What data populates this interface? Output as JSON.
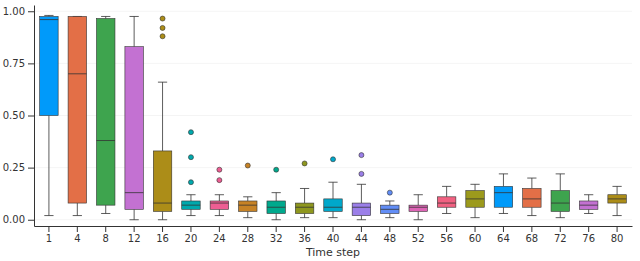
{
  "chart_data": {
    "type": "box",
    "x_label": "Time step",
    "categories": [
      "1",
      "4",
      "8",
      "12",
      "16",
      "20",
      "24",
      "28",
      "32",
      "36",
      "40",
      "44",
      "48",
      "52",
      "56",
      "60",
      "64",
      "68",
      "72",
      "76",
      "80"
    ],
    "boxes": [
      {
        "min": 0.02,
        "q1": 0.5,
        "median": 0.96,
        "q3": 0.975,
        "max": 0.98,
        "outliers": [],
        "color": "#009AFA"
      },
      {
        "min": 0.02,
        "q1": 0.08,
        "median": 0.7,
        "q3": 0.975,
        "max": 0.975,
        "outliers": [],
        "color": "#E36F47"
      },
      {
        "min": 0.03,
        "q1": 0.07,
        "median": 0.38,
        "q3": 0.965,
        "max": 0.975,
        "outliers": [],
        "color": "#3EA44E"
      },
      {
        "min": 0.0,
        "q1": 0.05,
        "median": 0.13,
        "q3": 0.83,
        "max": 0.975,
        "outliers": [],
        "color": "#C371D2"
      },
      {
        "min": 0.0,
        "q1": 0.04,
        "median": 0.08,
        "q3": 0.33,
        "max": 0.66,
        "outliers": [
          0.88,
          0.92,
          0.965
        ],
        "color": "#AC8D18"
      },
      {
        "min": 0.02,
        "q1": 0.05,
        "median": 0.07,
        "q3": 0.09,
        "max": 0.12,
        "outliers": [
          0.18,
          0.3,
          0.42
        ],
        "color": "#00A9AD"
      },
      {
        "min": 0.02,
        "q1": 0.05,
        "median": 0.08,
        "q3": 0.09,
        "max": 0.12,
        "outliers": [
          0.19,
          0.24
        ],
        "color": "#ED5E93"
      },
      {
        "min": 0.01,
        "q1": 0.04,
        "median": 0.07,
        "q3": 0.09,
        "max": 0.11,
        "outliers": [
          0.26
        ],
        "color": "#C68225"
      },
      {
        "min": 0.0,
        "q1": 0.03,
        "median": 0.06,
        "q3": 0.09,
        "max": 0.13,
        "outliers": [
          0.24
        ],
        "color": "#00A98D"
      },
      {
        "min": 0.01,
        "q1": 0.03,
        "median": 0.06,
        "q3": 0.08,
        "max": 0.15,
        "outliers": [
          0.27
        ],
        "color": "#8E971E"
      },
      {
        "min": 0.01,
        "q1": 0.04,
        "median": 0.06,
        "q3": 0.1,
        "max": 0.18,
        "outliers": [
          0.29
        ],
        "color": "#00A8CB"
      },
      {
        "min": 0.0,
        "q1": 0.02,
        "median": 0.06,
        "q3": 0.08,
        "max": 0.17,
        "outliers": [
          0.22,
          0.31
        ],
        "color": "#9B7FE9"
      },
      {
        "min": 0.01,
        "q1": 0.03,
        "median": 0.05,
        "q3": 0.07,
        "max": 0.09,
        "outliers": [
          0.13
        ],
        "color": "#618DF6"
      },
      {
        "min": 0.0,
        "q1": 0.04,
        "median": 0.06,
        "q3": 0.07,
        "max": 0.12,
        "outliers": [],
        "color": "#DD64B5"
      },
      {
        "min": 0.03,
        "q1": 0.06,
        "median": 0.08,
        "q3": 0.11,
        "max": 0.16,
        "outliers": [],
        "color": "#F16181"
      },
      {
        "min": 0.01,
        "q1": 0.06,
        "median": 0.1,
        "q3": 0.14,
        "max": 0.17,
        "outliers": [],
        "color": "#9C9A1C"
      },
      {
        "min": 0.03,
        "q1": 0.06,
        "median": 0.13,
        "q3": 0.16,
        "max": 0.22,
        "outliers": [],
        "color": "#009AFA"
      },
      {
        "min": 0.02,
        "q1": 0.06,
        "median": 0.1,
        "q3": 0.15,
        "max": 0.2,
        "outliers": [],
        "color": "#E36F47"
      },
      {
        "min": 0.01,
        "q1": 0.04,
        "median": 0.08,
        "q3": 0.14,
        "max": 0.22,
        "outliers": [],
        "color": "#3EA44E"
      },
      {
        "min": 0.03,
        "q1": 0.05,
        "median": 0.07,
        "q3": 0.09,
        "max": 0.12,
        "outliers": [],
        "color": "#C371D2"
      },
      {
        "min": 0.02,
        "q1": 0.08,
        "median": 0.1,
        "q3": 0.12,
        "max": 0.16,
        "outliers": [],
        "color": "#AC8D18"
      }
    ],
    "ylim": [
      -0.03,
      1.03
    ],
    "yticks": [
      {
        "value": 0,
        "label": "0.00"
      },
      {
        "value": 0.25,
        "label": "0.25"
      },
      {
        "value": 0.5,
        "label": "0.50"
      },
      {
        "value": 0.75,
        "label": "0.75"
      },
      {
        "value": 1,
        "label": "1.00"
      }
    ],
    "grid": true
  }
}
